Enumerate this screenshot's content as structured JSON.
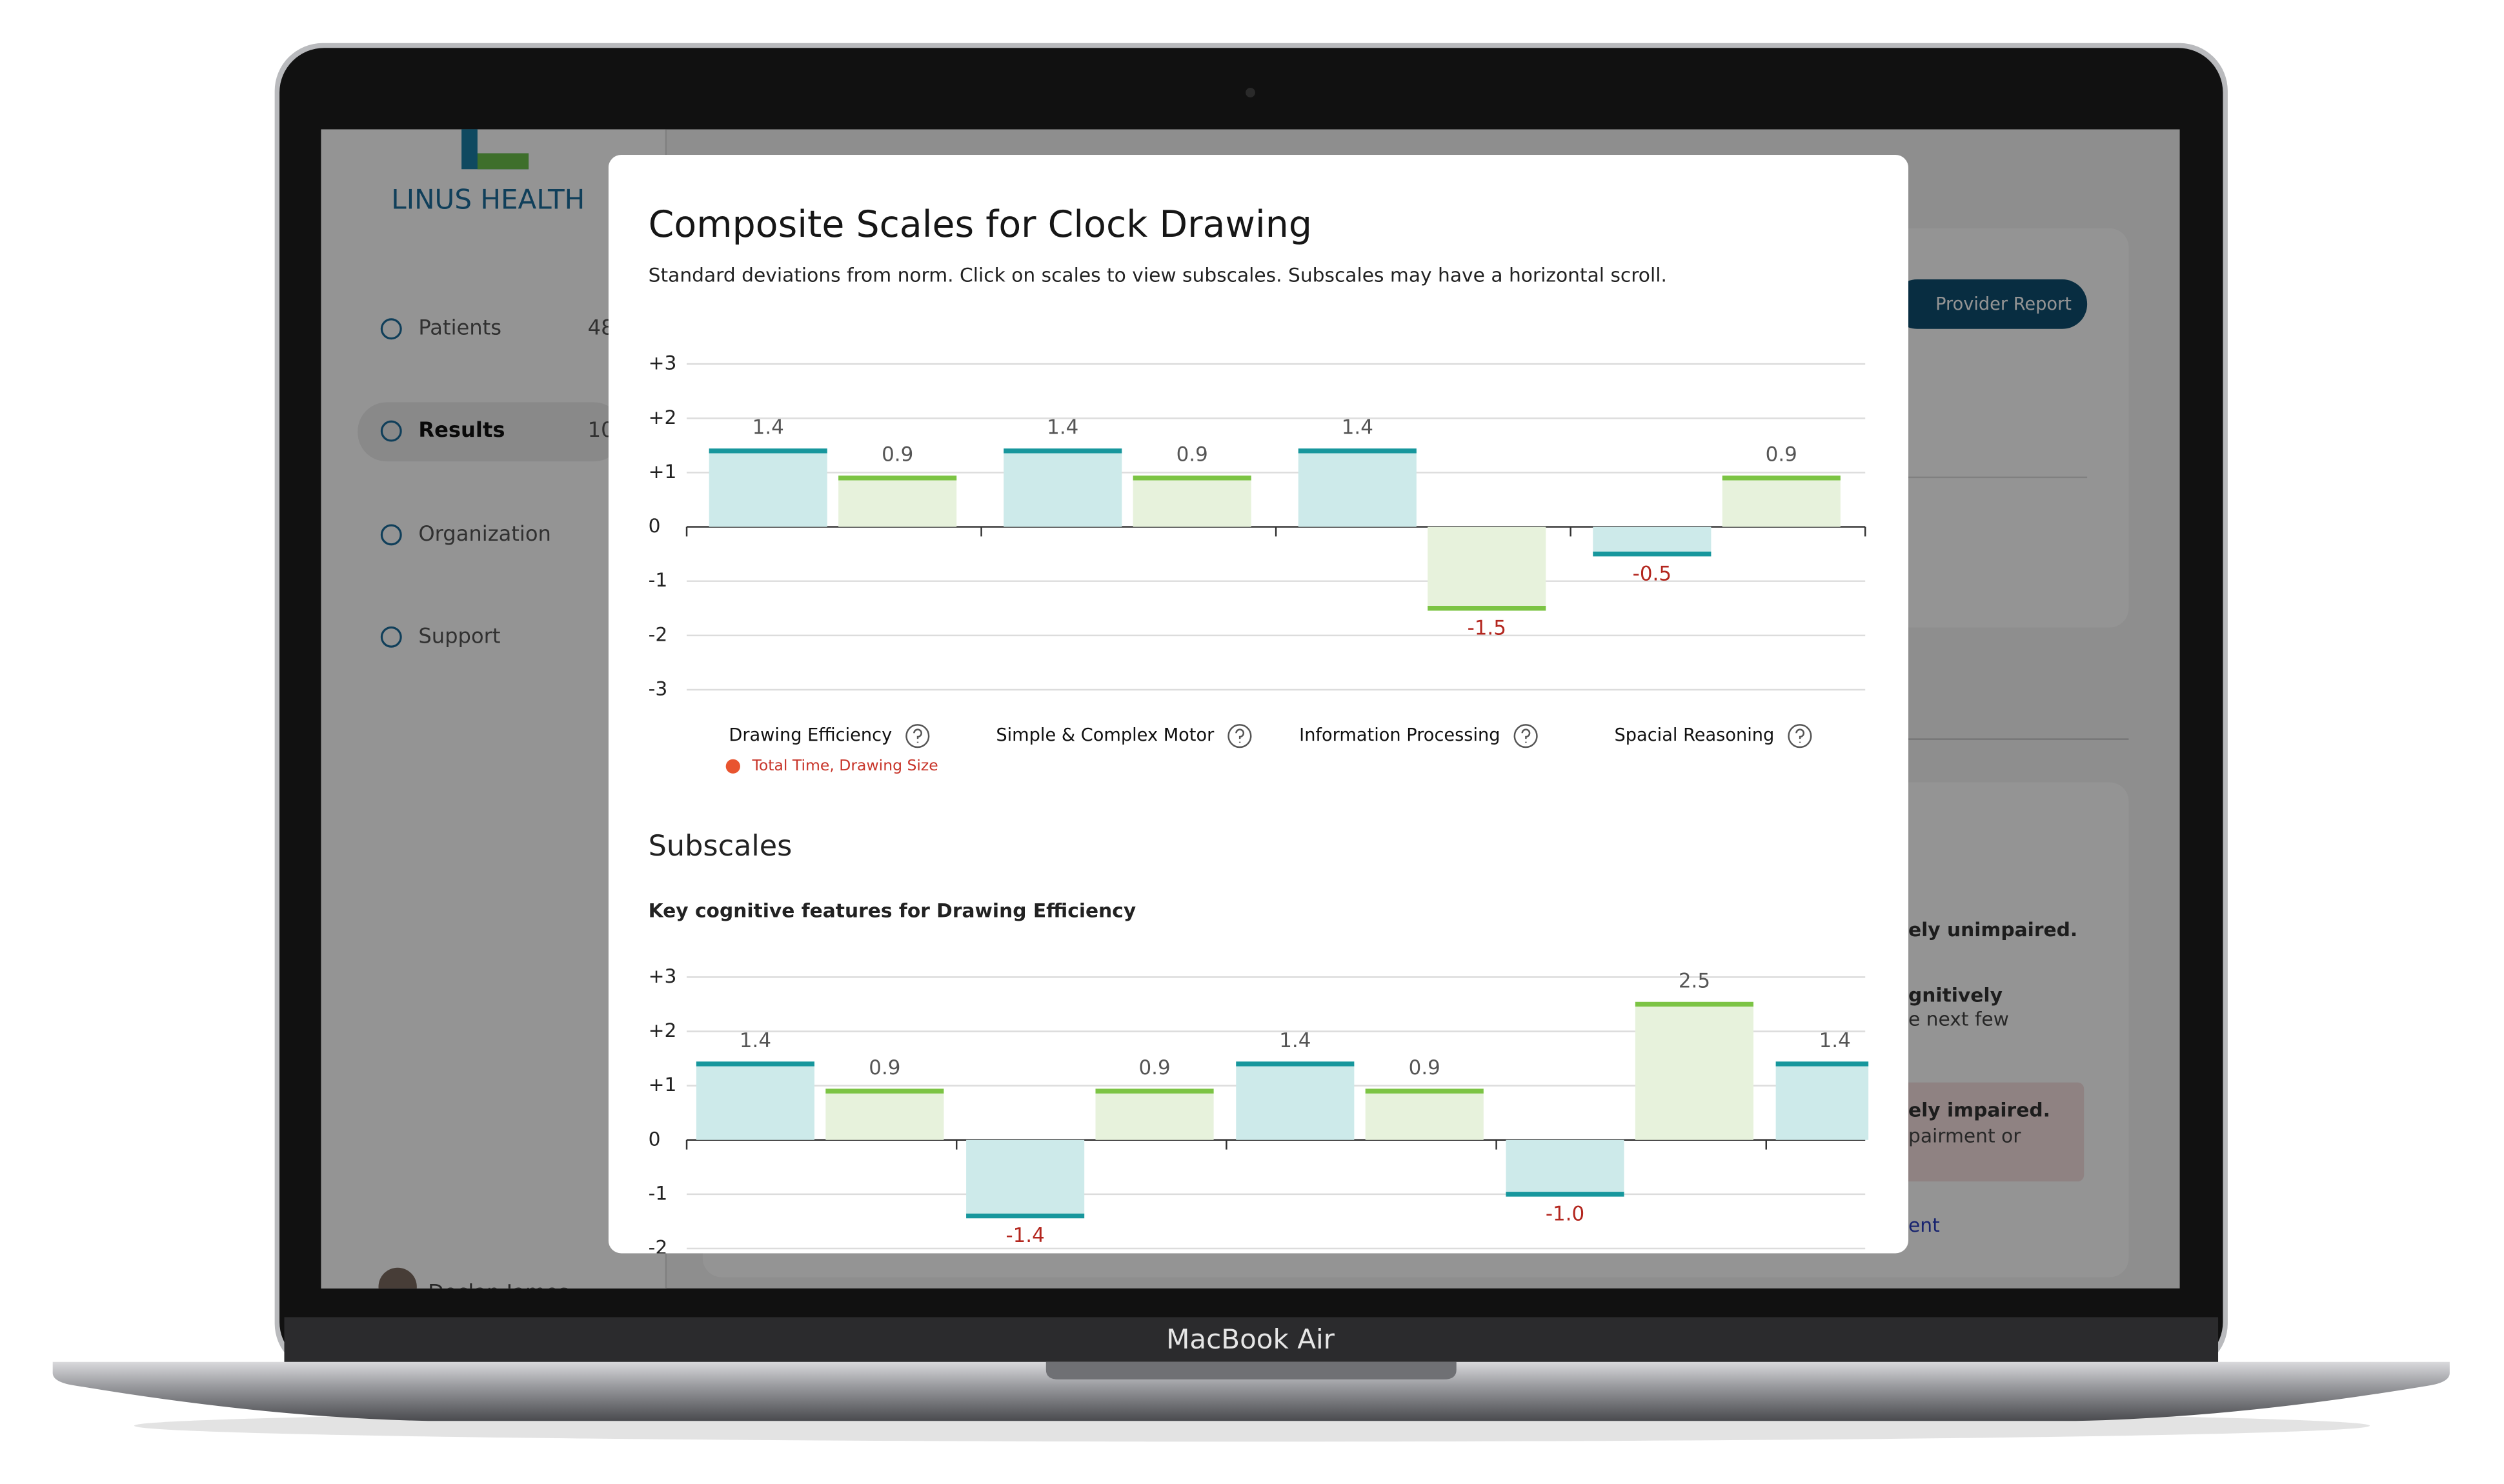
{
  "device": {
    "label": "MacBook Air"
  },
  "sidebar": {
    "brand": "LINUS HEALTH",
    "nav": [
      {
        "label": "Patients",
        "count": "48"
      },
      {
        "label": "Results",
        "count": "10"
      },
      {
        "label": "Organization"
      },
      {
        "label": "Support"
      }
    ],
    "user": "Declan James"
  },
  "background": {
    "button": "Provider Report",
    "texts": [
      "ely unimpaired.",
      "gnitively",
      "e next few",
      "ely impaired.",
      "pairment or",
      "ent"
    ]
  },
  "modal": {
    "title": "Composite Scales for Clock Drawing",
    "subtitle": "Standard deviations from norm. Click on scales to view subscales. Subscales may have a horizontal scroll.",
    "section": "Subscales",
    "section_subtitle": "Key cognitive features for Drawing Efficiency"
  },
  "chart_data": [
    {
      "type": "bar",
      "categories": [
        "Drawing Efficiency",
        "Simple & Complex Motor",
        "Information Processing",
        "Spacial Reasoning"
      ],
      "annotation": "Total Time, Drawing Size",
      "series": [
        {
          "color": "#17979d",
          "fill": "#cdeaea",
          "values": [
            1.4,
            1.4,
            1.4,
            -0.5
          ]
        },
        {
          "color": "#7cc444",
          "fill": "#e7f2dc",
          "values": [
            0.9,
            0.9,
            -1.5,
            0.9
          ]
        }
      ],
      "ylim": [
        -3,
        3
      ],
      "yticks": [
        {
          "value": 3,
          "label": "+3"
        },
        {
          "value": 2,
          "label": "+2"
        },
        {
          "value": 1,
          "label": "+1"
        },
        0,
        -1,
        -2,
        -3
      ],
      "grid": true
    },
    {
      "type": "bar",
      "categories": [
        null,
        null,
        null,
        null,
        null
      ],
      "series": [
        {
          "color": "#17979d",
          "fill": "#cdeaea",
          "values": [
            1.4,
            -1.4,
            1.4,
            -1,
            1.4
          ],
          "value_labels": [
            "1.4",
            "-1.4",
            "1.4",
            "-1.0",
            "1.4"
          ]
        },
        {
          "color": "#7cc444",
          "fill": "#e7f2dc",
          "values": [
            0.9,
            0.9,
            0.9,
            2.5,
            null
          ]
        }
      ],
      "ylim": [
        -3,
        3
      ],
      "yticks": [
        {
          "value": 3,
          "label": "+3"
        },
        {
          "value": 2,
          "label": "+2"
        },
        {
          "value": 1,
          "label": "+1"
        },
        0,
        -1,
        -2
      ],
      "grid": true
    }
  ]
}
